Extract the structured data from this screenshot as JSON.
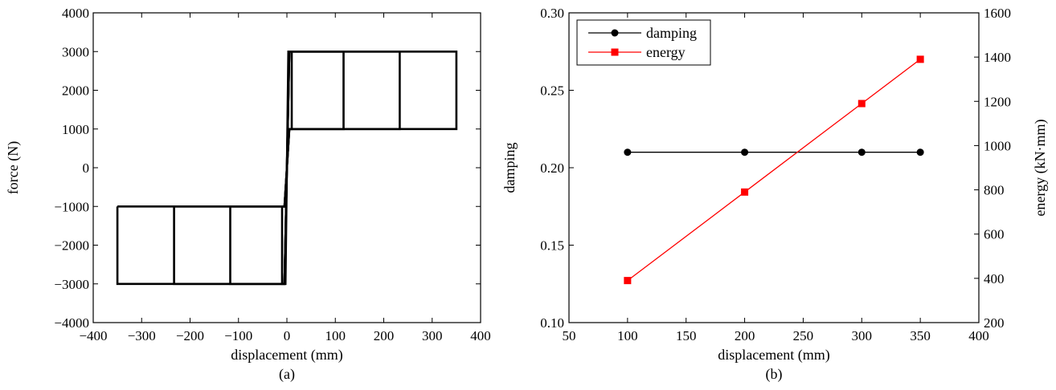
{
  "chart_data": [
    {
      "type": "line",
      "caption": "(a)",
      "xlabel": "displacement (mm)",
      "ylabel": "force (N)",
      "xlim": [
        -400,
        400
      ],
      "ylim": [
        -4000,
        4000
      ],
      "xticks": [
        -400,
        -300,
        -200,
        -100,
        0,
        100,
        200,
        300,
        400
      ],
      "yticks": [
        -4000,
        -3000,
        -2000,
        -1000,
        0,
        1000,
        2000,
        3000,
        4000
      ],
      "grid": false,
      "color": "#000000",
      "series": [
        {
          "x": [
            -350,
            350,
            350,
            -350,
            -350
          ],
          "y": [
            1000,
            1000,
            3000,
            3000,
            1000
          ],
          "hidden": true
        }
      ],
      "loops": [
        {
          "x": [
            -350,
            -5,
            5,
            350,
            350,
            5,
            -5,
            -350,
            -350
          ],
          "y": [
            -1000,
            -1000,
            1000,
            1000,
            3000,
            3000,
            -3000,
            -3000,
            -1000
          ]
        },
        {
          "x": [
            -233,
            -5,
            5,
            233,
            233,
            5,
            -5,
            -233,
            -233
          ],
          "y": [
            -1000,
            -1000,
            1000,
            1000,
            3000,
            3000,
            -3000,
            -3000,
            -1000
          ]
        },
        {
          "x": [
            -117,
            -5,
            5,
            117,
            117,
            5,
            -5,
            -117,
            -117
          ],
          "y": [
            -1000,
            -1000,
            1000,
            1000,
            3000,
            3000,
            -3000,
            -3000,
            -1000
          ]
        },
        {
          "x": [
            -10,
            -3,
            3,
            10,
            10,
            3,
            -3,
            -10,
            -10
          ],
          "y": [
            -1000,
            -1000,
            1000,
            1000,
            3000,
            3000,
            -3000,
            -3000,
            -1000
          ]
        }
      ]
    },
    {
      "type": "line",
      "caption": "(b)",
      "xlabel": "displacement (mm)",
      "ylabel": "damping",
      "y2label": "energy (kN·mm)",
      "xlim": [
        50,
        400
      ],
      "ylim": [
        0.1,
        0.3
      ],
      "y2lim": [
        200,
        1600
      ],
      "xticks": [
        50,
        100,
        150,
        200,
        250,
        300,
        350,
        400
      ],
      "yticks": [
        "0.10",
        "0.15",
        "0.20",
        "0.25",
        "0.30"
      ],
      "y2ticks": [
        200,
        400,
        600,
        800,
        1000,
        1200,
        1400,
        1600
      ],
      "grid": false,
      "legend_position": "top-left",
      "series": [
        {
          "name": "damping",
          "axis": "left",
          "color": "#000000",
          "marker": "circle",
          "x": [
            100,
            200,
            300,
            350
          ],
          "y": [
            0.21,
            0.21,
            0.21,
            0.21
          ]
        },
        {
          "name": "energy",
          "axis": "right",
          "color": "#ff0000",
          "marker": "square",
          "x": [
            100,
            200,
            300,
            350
          ],
          "y": [
            390,
            790,
            1190,
            1390
          ]
        }
      ]
    }
  ]
}
